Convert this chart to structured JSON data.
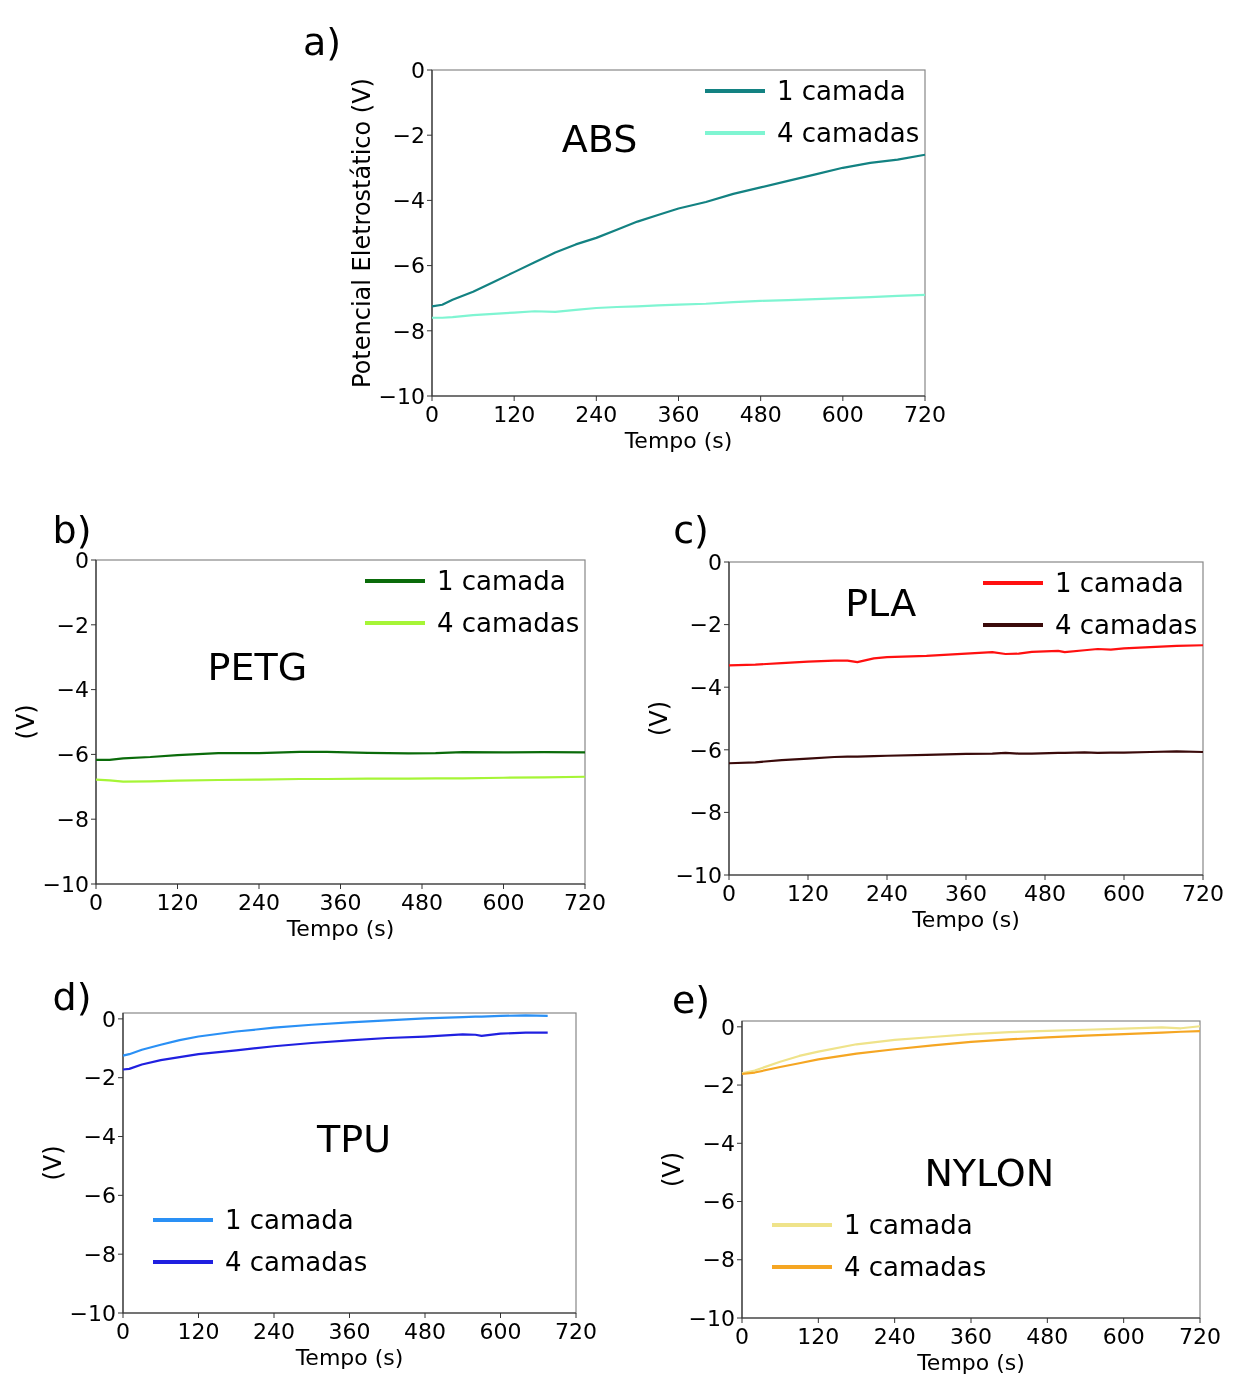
{
  "chart_data": [
    {
      "type": "line",
      "title": "ABS",
      "xlabel": "Tempo (s)",
      "ylabel": "Potencial Eletrostático (V)",
      "annotations": [
        "a)"
      ],
      "xlim": [
        0,
        720
      ],
      "ylim": [
        -10,
        0
      ],
      "xticks": [
        0,
        120,
        240,
        360,
        480,
        600,
        720
      ],
      "yticks": [
        0,
        -2,
        -4,
        -6,
        -8,
        -10
      ],
      "legend": "top right",
      "grid": false,
      "line_style": "solid",
      "x": [
        0,
        15,
        30,
        60,
        90,
        120,
        150,
        180,
        210,
        240,
        270,
        300,
        330,
        360,
        400,
        440,
        480,
        520,
        560,
        600,
        640,
        680,
        720
      ],
      "series": [
        {
          "name": "1 camada",
          "color": "#138282",
          "values": [
            -7.25,
            -7.2,
            -7.05,
            -6.8,
            -6.5,
            -6.2,
            -5.9,
            -5.6,
            -5.35,
            -5.15,
            -4.9,
            -4.65,
            -4.45,
            -4.25,
            -4.05,
            -3.8,
            -3.6,
            -3.4,
            -3.2,
            -3.0,
            -2.85,
            -2.75,
            -2.6
          ]
        },
        {
          "name": "4 camadas",
          "color": "#7ff5d2",
          "values": [
            -7.6,
            -7.6,
            -7.58,
            -7.52,
            -7.48,
            -7.44,
            -7.4,
            -7.42,
            -7.36,
            -7.3,
            -7.27,
            -7.25,
            -7.22,
            -7.2,
            -7.17,
            -7.12,
            -7.08,
            -7.06,
            -7.03,
            -7.0,
            -6.97,
            -6.93,
            -6.9
          ]
        }
      ]
    },
    {
      "type": "line",
      "title": "PETG",
      "xlabel": "Tempo (s)",
      "ylabel": "(V)",
      "annotations": [
        "b)"
      ],
      "xlim": [
        0,
        720
      ],
      "ylim": [
        -10,
        0
      ],
      "xticks": [
        0,
        120,
        240,
        360,
        480,
        600,
        720
      ],
      "yticks": [
        0,
        -2,
        -4,
        -6,
        -8,
        -10
      ],
      "legend": "top right",
      "grid": false,
      "line_style": "solid",
      "x": [
        0,
        20,
        40,
        80,
        120,
        180,
        240,
        300,
        340,
        400,
        460,
        500,
        540,
        600,
        660,
        720
      ],
      "series": [
        {
          "name": "1 camada",
          "color": "#0a6b0a",
          "values": [
            -6.17,
            -6.17,
            -6.12,
            -6.08,
            -6.02,
            -5.96,
            -5.96,
            -5.92,
            -5.92,
            -5.95,
            -5.97,
            -5.96,
            -5.93,
            -5.94,
            -5.93,
            -5.94
          ]
        },
        {
          "name": "4 camadas",
          "color": "#a6f536",
          "values": [
            -6.78,
            -6.8,
            -6.84,
            -6.83,
            -6.81,
            -6.79,
            -6.78,
            -6.76,
            -6.76,
            -6.75,
            -6.75,
            -6.74,
            -6.74,
            -6.72,
            -6.71,
            -6.69
          ]
        }
      ]
    },
    {
      "type": "line",
      "title": "PLA",
      "xlabel": "Tempo (s)",
      "ylabel": "(V)",
      "annotations": [
        "c)"
      ],
      "xlim": [
        0,
        720
      ],
      "ylim": [
        -10,
        0
      ],
      "xticks": [
        0,
        120,
        240,
        360,
        480,
        600,
        720
      ],
      "yticks": [
        0,
        -2,
        -4,
        -6,
        -8,
        -10
      ],
      "legend": "top right",
      "grid": false,
      "line_style": "solid",
      "x": [
        0,
        40,
        80,
        120,
        160,
        180,
        195,
        220,
        240,
        300,
        360,
        400,
        420,
        440,
        460,
        500,
        510,
        540,
        560,
        580,
        600,
        640,
        680,
        720
      ],
      "series": [
        {
          "name": "1 camada",
          "color": "#ff1010",
          "values": [
            -3.3,
            -3.28,
            -3.23,
            -3.18,
            -3.15,
            -3.15,
            -3.2,
            -3.08,
            -3.04,
            -3.0,
            -2.93,
            -2.88,
            -2.94,
            -2.93,
            -2.87,
            -2.84,
            -2.88,
            -2.82,
            -2.78,
            -2.8,
            -2.76,
            -2.72,
            -2.68,
            -2.66
          ]
        },
        {
          "name": "4 camadas",
          "color": "#3a0a0a",
          "values": [
            -6.43,
            -6.4,
            -6.33,
            -6.28,
            -6.23,
            -6.22,
            -6.22,
            -6.2,
            -6.19,
            -6.16,
            -6.13,
            -6.12,
            -6.1,
            -6.12,
            -6.12,
            -6.1,
            -6.1,
            -6.08,
            -6.1,
            -6.09,
            -6.09,
            -6.07,
            -6.05,
            -6.07
          ]
        }
      ]
    },
    {
      "type": "line",
      "title": "TPU",
      "xlabel": "Tempo (s)",
      "ylabel": "(V)",
      "annotations": [
        "d)"
      ],
      "xlim": [
        0,
        720
      ],
      "ylim": [
        -10,
        0.2
      ],
      "xticks": [
        0,
        120,
        240,
        360,
        480,
        600,
        720
      ],
      "yticks": [
        0,
        -2,
        -4,
        -6,
        -8,
        -10
      ],
      "legend": "bottom left",
      "grid": false,
      "line_style": "solid",
      "x": [
        0,
        10,
        30,
        60,
        90,
        120,
        180,
        240,
        300,
        360,
        420,
        480,
        540,
        560,
        570,
        600,
        640,
        675
      ],
      "series": [
        {
          "name": "1 camada",
          "color": "#2a90f5",
          "values": [
            -1.25,
            -1.2,
            -1.05,
            -0.88,
            -0.72,
            -0.6,
            -0.43,
            -0.3,
            -0.2,
            -0.12,
            -0.05,
            0.02,
            0.06,
            0.08,
            0.08,
            0.1,
            0.12,
            0.1
          ]
        },
        {
          "name": "4 camadas",
          "color": "#2020e0",
          "values": [
            -1.72,
            -1.7,
            -1.55,
            -1.4,
            -1.3,
            -1.2,
            -1.07,
            -0.93,
            -0.82,
            -0.73,
            -0.65,
            -0.6,
            -0.53,
            -0.54,
            -0.58,
            -0.5,
            -0.47,
            -0.47
          ]
        }
      ]
    },
    {
      "type": "line",
      "title": "NYLON",
      "xlabel": "Tempo (s)",
      "ylabel": "(V)",
      "annotations": [
        "e)"
      ],
      "xlim": [
        0,
        720
      ],
      "ylim": [
        -10,
        0.2
      ],
      "xticks": [
        0,
        120,
        240,
        360,
        480,
        600,
        720
      ],
      "yticks": [
        0,
        -2,
        -4,
        -6,
        -8,
        -10
      ],
      "legend": "bottom left",
      "grid": false,
      "line_style": "solid",
      "x": [
        0,
        20,
        60,
        90,
        120,
        180,
        240,
        300,
        360,
        420,
        480,
        540,
        600,
        660,
        690,
        720
      ],
      "series": [
        {
          "name": "1 camada",
          "color": "#efe38a",
          "values": [
            -1.6,
            -1.5,
            -1.2,
            -1.0,
            -0.85,
            -0.6,
            -0.45,
            -0.35,
            -0.25,
            -0.18,
            -0.14,
            -0.1,
            -0.06,
            -0.02,
            -0.05,
            0.02
          ]
        },
        {
          "name": "4 camadas",
          "color": "#f5a623",
          "values": [
            -1.62,
            -1.57,
            -1.38,
            -1.25,
            -1.12,
            -0.92,
            -0.77,
            -0.64,
            -0.52,
            -0.43,
            -0.36,
            -0.3,
            -0.25,
            -0.2,
            -0.17,
            -0.15
          ]
        }
      ]
    }
  ]
}
